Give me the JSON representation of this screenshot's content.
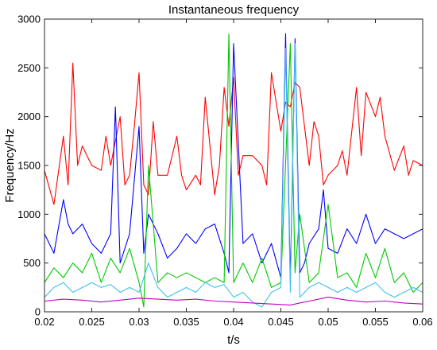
{
  "chart_data": {
    "type": "line",
    "title": "Instantaneous frequency",
    "xlabel": "t/s",
    "ylabel": "Frequency/Hz",
    "xlim": [
      0.02,
      0.06
    ],
    "ylim": [
      0,
      3000
    ],
    "xticks": [
      0.02,
      0.025,
      0.03,
      0.035,
      0.04,
      0.045,
      0.05,
      0.055,
      0.06
    ],
    "xtick_labels": [
      "0.02",
      "0.025",
      "0.03",
      "0.035",
      "0.04",
      "0.045",
      "0.05",
      "0.055",
      "0.06"
    ],
    "yticks": [
      0,
      500,
      1000,
      1500,
      2000,
      2500,
      3000
    ],
    "ytick_labels": [
      "0",
      "500",
      "1000",
      "1500",
      "2000",
      "2500",
      "3000"
    ],
    "grid": false,
    "series": [
      {
        "color": "#ff0000",
        "x": [
          0.02,
          0.021,
          0.022,
          0.0225,
          0.023,
          0.0235,
          0.024,
          0.025,
          0.026,
          0.0265,
          0.027,
          0.028,
          0.0285,
          0.029,
          0.0295,
          0.03,
          0.0305,
          0.031,
          0.0315,
          0.032,
          0.033,
          0.034,
          0.0345,
          0.035,
          0.036,
          0.0365,
          0.037,
          0.038,
          0.0385,
          0.039,
          0.0395,
          0.04,
          0.0405,
          0.041,
          0.042,
          0.043,
          0.0435,
          0.044,
          0.045,
          0.0455,
          0.046,
          0.0465,
          0.047,
          0.048,
          0.0485,
          0.049,
          0.0495,
          0.05,
          0.051,
          0.0515,
          0.052,
          0.053,
          0.0535,
          0.054,
          0.055,
          0.0555,
          0.056,
          0.057,
          0.058,
          0.0585,
          0.059,
          0.06
        ],
        "values": [
          1450,
          1100,
          1800,
          1300,
          2550,
          1500,
          1700,
          1500,
          1450,
          1800,
          1500,
          2000,
          1300,
          1400,
          1900,
          2450,
          1300,
          1200,
          1950,
          1400,
          1400,
          1800,
          1400,
          1250,
          1400,
          1300,
          2200,
          1200,
          1500,
          2300,
          1900,
          2400,
          1400,
          1600,
          1600,
          1500,
          1300,
          2450,
          1850,
          2150,
          2100,
          2350,
          2300,
          1500,
          1950,
          1800,
          1300,
          1400,
          1500,
          1650,
          1400,
          2300,
          1600,
          2250,
          2000,
          2200,
          1800,
          1450,
          1700,
          1400,
          1550,
          1500
        ]
      },
      {
        "color": "#0000ff",
        "x": [
          0.02,
          0.021,
          0.022,
          0.0225,
          0.023,
          0.024,
          0.025,
          0.026,
          0.027,
          0.0275,
          0.028,
          0.029,
          0.03,
          0.0305,
          0.031,
          0.032,
          0.033,
          0.034,
          0.035,
          0.036,
          0.037,
          0.038,
          0.039,
          0.0395,
          0.04,
          0.041,
          0.042,
          0.043,
          0.044,
          0.045,
          0.0455,
          0.046,
          0.0465,
          0.047,
          0.0475,
          0.048,
          0.049,
          0.0495,
          0.05,
          0.051,
          0.052,
          0.053,
          0.054,
          0.055,
          0.056,
          0.057,
          0.058,
          0.059,
          0.06
        ],
        "values": [
          800,
          600,
          1150,
          900,
          800,
          900,
          700,
          600,
          800,
          2100,
          500,
          800,
          1900,
          600,
          1000,
          800,
          550,
          650,
          800,
          700,
          850,
          900,
          600,
          400,
          2750,
          700,
          800,
          500,
          700,
          350,
          2850,
          300,
          2800,
          400,
          500,
          700,
          850,
          1250,
          650,
          600,
          850,
          700,
          1000,
          700,
          850,
          800,
          750,
          800,
          850
        ]
      },
      {
        "color": "#00c800",
        "x": [
          0.02,
          0.021,
          0.022,
          0.023,
          0.024,
          0.025,
          0.026,
          0.027,
          0.028,
          0.029,
          0.03,
          0.0305,
          0.031,
          0.032,
          0.033,
          0.034,
          0.035,
          0.036,
          0.037,
          0.038,
          0.039,
          0.0395,
          0.04,
          0.041,
          0.042,
          0.043,
          0.044,
          0.045,
          0.046,
          0.0465,
          0.047,
          0.048,
          0.049,
          0.05,
          0.051,
          0.052,
          0.053,
          0.054,
          0.055,
          0.056,
          0.057,
          0.058,
          0.059,
          0.06
        ],
        "values": [
          300,
          450,
          350,
          500,
          400,
          600,
          300,
          550,
          400,
          650,
          300,
          50,
          1500,
          300,
          400,
          350,
          400,
          350,
          300,
          350,
          300,
          2850,
          300,
          500,
          300,
          550,
          250,
          300,
          2750,
          400,
          1000,
          300,
          400,
          1100,
          350,
          400,
          250,
          600,
          350,
          650,
          300,
          400,
          200,
          300
        ]
      },
      {
        "color": "#3fbfef",
        "x": [
          0.02,
          0.021,
          0.022,
          0.023,
          0.024,
          0.025,
          0.026,
          0.027,
          0.028,
          0.029,
          0.03,
          0.031,
          0.032,
          0.033,
          0.034,
          0.035,
          0.036,
          0.037,
          0.038,
          0.039,
          0.04,
          0.041,
          0.042,
          0.043,
          0.044,
          0.045,
          0.0455,
          0.046,
          0.0465,
          0.047,
          0.048,
          0.049,
          0.05,
          0.051,
          0.052,
          0.053,
          0.054,
          0.055,
          0.056,
          0.057,
          0.058,
          0.059,
          0.06
        ],
        "values": [
          150,
          250,
          300,
          200,
          250,
          300,
          250,
          280,
          200,
          250,
          200,
          500,
          250,
          150,
          200,
          250,
          200,
          300,
          250,
          280,
          150,
          200,
          100,
          50,
          200,
          250,
          2700,
          200,
          2750,
          150,
          250,
          300,
          250,
          200,
          250,
          200,
          250,
          300,
          200,
          150,
          200,
          250,
          200
        ]
      },
      {
        "color": "#c000c0",
        "x": [
          0.02,
          0.022,
          0.024,
          0.026,
          0.028,
          0.03,
          0.032,
          0.034,
          0.036,
          0.038,
          0.04,
          0.042,
          0.044,
          0.046,
          0.048,
          0.05,
          0.052,
          0.054,
          0.056,
          0.058,
          0.06
        ],
        "values": [
          110,
          130,
          120,
          100,
          120,
          140,
          130,
          120,
          130,
          110,
          100,
          90,
          80,
          70,
          110,
          150,
          120,
          100,
          110,
          90,
          80
        ]
      }
    ]
  }
}
